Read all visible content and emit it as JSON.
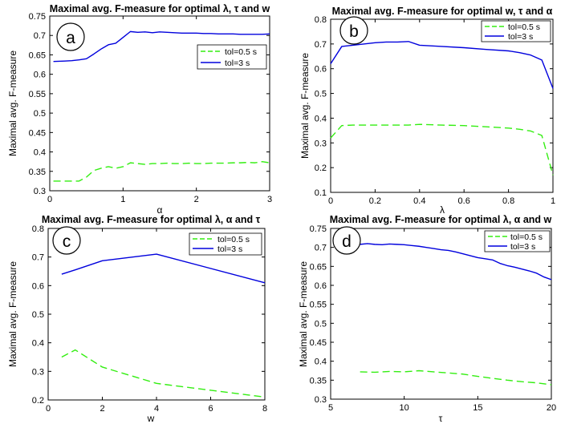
{
  "chart_data": [
    {
      "type": "line",
      "panel_letter": "a",
      "title": "Maximal avg. F-measure for optimal λ, τ and w",
      "xlabel": "α",
      "ylabel": "Maximal avg. F-measure",
      "xlim": [
        0,
        3
      ],
      "ylim": [
        0.3,
        0.75
      ],
      "xticks": [
        0,
        1,
        2,
        3
      ],
      "yticks": [
        0.3,
        0.35,
        0.4,
        0.45,
        0.5,
        0.55,
        0.6,
        0.65,
        0.7,
        0.75
      ],
      "grid": false,
      "legend_position": "right",
      "series": [
        {
          "name": "tol=0.5 s",
          "color": "#33ee11",
          "dash": "dashed",
          "x": [
            0.05,
            0.2,
            0.3,
            0.4,
            0.5,
            0.6,
            0.7,
            0.8,
            0.9,
            1.0,
            1.1,
            1.2,
            1.3,
            1.4,
            1.5,
            1.6,
            1.7,
            1.8,
            1.9,
            2.0,
            2.1,
            2.2,
            2.3,
            2.4,
            2.5,
            2.6,
            2.7,
            2.8,
            2.9,
            3.0
          ],
          "values": [
            0.325,
            0.325,
            0.325,
            0.325,
            0.335,
            0.352,
            0.358,
            0.362,
            0.358,
            0.362,
            0.372,
            0.37,
            0.368,
            0.37,
            0.37,
            0.371,
            0.37,
            0.37,
            0.371,
            0.37,
            0.37,
            0.371,
            0.371,
            0.371,
            0.372,
            0.372,
            0.373,
            0.372,
            0.375,
            0.372
          ]
        },
        {
          "name": "tol=3 s",
          "color": "#0000dd",
          "dash": "solid",
          "x": [
            0.05,
            0.2,
            0.3,
            0.4,
            0.5,
            0.6,
            0.7,
            0.8,
            0.9,
            1.0,
            1.1,
            1.2,
            1.3,
            1.4,
            1.5,
            1.6,
            1.7,
            1.8,
            1.9,
            2.0,
            2.1,
            2.2,
            2.3,
            2.4,
            2.5,
            2.6,
            2.7,
            2.8,
            2.9,
            3.0
          ],
          "values": [
            0.633,
            0.634,
            0.635,
            0.637,
            0.64,
            0.652,
            0.665,
            0.676,
            0.68,
            0.695,
            0.71,
            0.708,
            0.709,
            0.707,
            0.709,
            0.708,
            0.707,
            0.706,
            0.706,
            0.706,
            0.705,
            0.705,
            0.704,
            0.704,
            0.704,
            0.703,
            0.703,
            0.703,
            0.703,
            0.704
          ]
        }
      ]
    },
    {
      "type": "line",
      "panel_letter": "b",
      "title": "Maximal avg. F-measure for optimal w, τ and α",
      "xlabel": "λ",
      "ylabel": "Maximal avg. F-measure",
      "xlim": [
        0,
        1
      ],
      "ylim": [
        0.1,
        0.8
      ],
      "xticks": [
        0,
        0.2,
        0.4,
        0.6,
        0.8,
        1
      ],
      "yticks": [
        0.1,
        0.2,
        0.3,
        0.4,
        0.5,
        0.6,
        0.7,
        0.8
      ],
      "grid": false,
      "legend_position": "top-right",
      "series": [
        {
          "name": "tol=0.5 s",
          "color": "#33ee11",
          "dash": "dashed",
          "x": [
            0,
            0.05,
            0.1,
            0.2,
            0.3,
            0.35,
            0.4,
            0.5,
            0.6,
            0.7,
            0.8,
            0.85,
            0.9,
            0.95,
            1.0
          ],
          "values": [
            0.32,
            0.37,
            0.372,
            0.372,
            0.372,
            0.372,
            0.375,
            0.372,
            0.37,
            0.365,
            0.36,
            0.355,
            0.348,
            0.33,
            0.17
          ]
        },
        {
          "name": "tol=3 s",
          "color": "#0000dd",
          "dash": "solid",
          "x": [
            0,
            0.05,
            0.1,
            0.2,
            0.25,
            0.3,
            0.35,
            0.4,
            0.5,
            0.6,
            0.7,
            0.8,
            0.85,
            0.9,
            0.95,
            1.0
          ],
          "values": [
            0.62,
            0.69,
            0.695,
            0.705,
            0.708,
            0.708,
            0.71,
            0.695,
            0.69,
            0.685,
            0.678,
            0.672,
            0.665,
            0.655,
            0.635,
            0.52
          ]
        }
      ]
    },
    {
      "type": "line",
      "panel_letter": "c",
      "title": "Maximal avg. F-measure for optimal λ, α and τ",
      "xlabel": "w",
      "ylabel": "Maximal avg. F-measure",
      "xlim": [
        0,
        8
      ],
      "ylim": [
        0.2,
        0.8
      ],
      "xticks": [
        0,
        2,
        4,
        6,
        8
      ],
      "yticks": [
        0.2,
        0.3,
        0.4,
        0.5,
        0.6,
        0.7,
        0.8
      ],
      "grid": false,
      "legend_position": "top-right",
      "series": [
        {
          "name": "tol=0.5 s",
          "color": "#33ee11",
          "dash": "dashed",
          "x": [
            0.5,
            1,
            2,
            4,
            8
          ],
          "values": [
            0.35,
            0.375,
            0.315,
            0.258,
            0.21
          ]
        },
        {
          "name": "tol=3 s",
          "color": "#0000dd",
          "dash": "solid",
          "x": [
            0.5,
            1,
            2,
            4,
            8
          ],
          "values": [
            0.64,
            0.655,
            0.687,
            0.71,
            0.61
          ]
        }
      ]
    },
    {
      "type": "line",
      "panel_letter": "d",
      "title": "Maximal avg. F-measure for optimal λ, α and w",
      "xlabel": "τ",
      "ylabel": "Maximal avg. F-measure",
      "xlim": [
        5,
        20
      ],
      "ylim": [
        0.3,
        0.75
      ],
      "xticks": [
        5,
        10,
        15,
        20
      ],
      "yticks": [
        0.3,
        0.35,
        0.4,
        0.45,
        0.5,
        0.55,
        0.6,
        0.65,
        0.7,
        0.75
      ],
      "grid": false,
      "legend_position": "top-right",
      "series": [
        {
          "name": "tol=0.5 s",
          "color": "#33ee11",
          "dash": "dashed",
          "x": [
            7,
            8,
            9,
            10,
            11,
            12,
            13,
            14,
            15,
            16,
            17,
            18,
            19,
            20
          ],
          "values": [
            0.372,
            0.371,
            0.373,
            0.372,
            0.375,
            0.372,
            0.369,
            0.366,
            0.36,
            0.355,
            0.35,
            0.346,
            0.343,
            0.338
          ]
        },
        {
          "name": "tol=3 s",
          "color": "#0000dd",
          "dash": "solid",
          "x": [
            7,
            7.5,
            8,
            8.5,
            9,
            9.5,
            10,
            10.5,
            11,
            11.5,
            12,
            12.5,
            13,
            13.5,
            14,
            14.5,
            15,
            15.5,
            16,
            16.5,
            17,
            17.5,
            18,
            18.5,
            19,
            19.5,
            20
          ],
          "values": [
            0.708,
            0.71,
            0.708,
            0.707,
            0.709,
            0.708,
            0.707,
            0.705,
            0.703,
            0.7,
            0.697,
            0.694,
            0.692,
            0.688,
            0.683,
            0.678,
            0.673,
            0.67,
            0.667,
            0.658,
            0.652,
            0.648,
            0.643,
            0.638,
            0.632,
            0.622,
            0.615
          ]
        }
      ]
    }
  ]
}
